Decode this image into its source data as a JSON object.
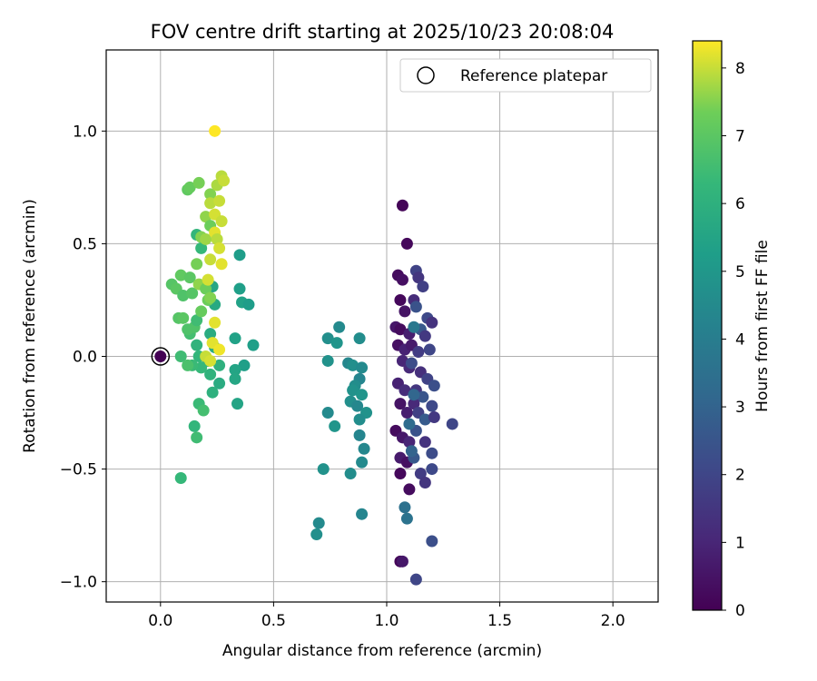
{
  "chart_data": {
    "type": "scatter",
    "title": "FOV centre drift starting at 2025/10/23 20:08:04",
    "xlabel": "Angular distance from reference (arcmin)",
    "ylabel": "Rotation from reference (arcmin)",
    "xlim": [
      -0.24,
      2.2
    ],
    "ylim": [
      -1.09,
      1.36
    ],
    "xticks": [
      0.0,
      0.5,
      1.0,
      1.5,
      2.0
    ],
    "xtick_labels": [
      "0.0",
      "0.5",
      "1.0",
      "1.5",
      "2.0"
    ],
    "yticks": [
      1.0,
      0.5,
      0.0,
      -0.5,
      -1.0
    ],
    "ytick_labels": [
      "1.0",
      "0.5",
      "0.0",
      "−0.5",
      "−1.0"
    ],
    "grid": true,
    "legend": {
      "position": "top-right",
      "entries": [
        "Reference platepar"
      ]
    },
    "reference_point": {
      "x": 0.0,
      "y": 0.0,
      "label": "Reference platepar"
    },
    "colorbar": {
      "label": "Hours from first FF file",
      "range": [
        0,
        8.4
      ],
      "ticks": [
        0,
        1,
        2,
        3,
        4,
        5,
        6,
        7,
        8
      ],
      "tick_labels": [
        "0",
        "1",
        "2",
        "3",
        "4",
        "5",
        "6",
        "7",
        "8"
      ],
      "colormap": "viridis"
    },
    "points": [
      {
        "x": 1.07,
        "y": 0.67,
        "h": 0.1
      },
      {
        "x": 1.09,
        "y": 0.5,
        "h": 0.2
      },
      {
        "x": 1.05,
        "y": 0.36,
        "h": 0.3
      },
      {
        "x": 1.07,
        "y": 0.34,
        "h": 0.4
      },
      {
        "x": 1.06,
        "y": 0.25,
        "h": 0.2
      },
      {
        "x": 1.08,
        "y": 0.2,
        "h": 0.5
      },
      {
        "x": 1.04,
        "y": 0.13,
        "h": 0.6
      },
      {
        "x": 1.06,
        "y": 0.12,
        "h": 0.3
      },
      {
        "x": 1.1,
        "y": 0.1,
        "h": 0.8
      },
      {
        "x": 1.05,
        "y": 0.05,
        "h": 0.4
      },
      {
        "x": 1.08,
        "y": 0.03,
        "h": 0.9
      },
      {
        "x": 1.11,
        "y": 0.05,
        "h": 0.7
      },
      {
        "x": 1.07,
        "y": -0.02,
        "h": 1.0
      },
      {
        "x": 1.1,
        "y": -0.05,
        "h": 1.1
      },
      {
        "x": 1.05,
        "y": -0.12,
        "h": 0.9
      },
      {
        "x": 1.08,
        "y": -0.15,
        "h": 1.2
      },
      {
        "x": 1.06,
        "y": -0.21,
        "h": 0.5
      },
      {
        "x": 1.09,
        "y": -0.25,
        "h": 0.8
      },
      {
        "x": 1.04,
        "y": -0.33,
        "h": 0.3
      },
      {
        "x": 1.07,
        "y": -0.36,
        "h": 0.6
      },
      {
        "x": 1.1,
        "y": -0.38,
        "h": 1.0
      },
      {
        "x": 1.06,
        "y": -0.45,
        "h": 0.7
      },
      {
        "x": 1.09,
        "y": -0.47,
        "h": 0.4
      },
      {
        "x": 1.06,
        "y": -0.52,
        "h": 0.2
      },
      {
        "x": 1.1,
        "y": -0.59,
        "h": 0.3
      },
      {
        "x": 1.06,
        "y": -0.91,
        "h": 0.1
      },
      {
        "x": 1.07,
        "y": -0.91,
        "h": 0.6
      },
      {
        "x": 1.13,
        "y": 0.38,
        "h": 1.9
      },
      {
        "x": 1.14,
        "y": 0.35,
        "h": 1.5
      },
      {
        "x": 1.16,
        "y": 0.31,
        "h": 1.8
      },
      {
        "x": 1.12,
        "y": 0.25,
        "h": 1.2
      },
      {
        "x": 1.13,
        "y": 0.22,
        "h": 2.4
      },
      {
        "x": 1.18,
        "y": 0.17,
        "h": 2.1
      },
      {
        "x": 1.2,
        "y": 0.15,
        "h": 1.4
      },
      {
        "x": 1.15,
        "y": 0.12,
        "h": 2.6
      },
      {
        "x": 1.17,
        "y": 0.09,
        "h": 1.6
      },
      {
        "x": 1.19,
        "y": 0.03,
        "h": 2.0
      },
      {
        "x": 1.14,
        "y": 0.02,
        "h": 1.7
      },
      {
        "x": 1.11,
        "y": -0.03,
        "h": 2.2
      },
      {
        "x": 1.15,
        "y": -0.07,
        "h": 1.3
      },
      {
        "x": 1.18,
        "y": -0.1,
        "h": 1.9
      },
      {
        "x": 1.21,
        "y": -0.13,
        "h": 2.3
      },
      {
        "x": 1.13,
        "y": -0.15,
        "h": 1.5
      },
      {
        "x": 1.16,
        "y": -0.18,
        "h": 2.5
      },
      {
        "x": 1.12,
        "y": -0.21,
        "h": 1.1
      },
      {
        "x": 1.2,
        "y": -0.22,
        "h": 2.1
      },
      {
        "x": 1.14,
        "y": -0.25,
        "h": 1.8
      },
      {
        "x": 1.17,
        "y": -0.28,
        "h": 2.7
      },
      {
        "x": 1.21,
        "y": -0.27,
        "h": 1.6
      },
      {
        "x": 1.29,
        "y": -0.3,
        "h": 2.0
      },
      {
        "x": 1.13,
        "y": -0.33,
        "h": 2.4
      },
      {
        "x": 1.17,
        "y": -0.38,
        "h": 1.4
      },
      {
        "x": 1.2,
        "y": -0.43,
        "h": 2.2
      },
      {
        "x": 1.12,
        "y": -0.45,
        "h": 2.6
      },
      {
        "x": 1.15,
        "y": -0.52,
        "h": 1.7
      },
      {
        "x": 1.2,
        "y": -0.5,
        "h": 2.1
      },
      {
        "x": 1.17,
        "y": -0.56,
        "h": 1.5
      },
      {
        "x": 1.2,
        "y": -0.82,
        "h": 2.3
      },
      {
        "x": 1.13,
        "y": -0.99,
        "h": 2.0
      },
      {
        "x": 1.11,
        "y": -0.42,
        "h": 3.0
      },
      {
        "x": 1.1,
        "y": -0.3,
        "h": 3.3
      },
      {
        "x": 1.12,
        "y": -0.17,
        "h": 3.1
      },
      {
        "x": 1.08,
        "y": -0.67,
        "h": 3.5
      },
      {
        "x": 1.09,
        "y": -0.72,
        "h": 3.6
      },
      {
        "x": 1.12,
        "y": 0.13,
        "h": 3.8
      },
      {
        "x": 0.79,
        "y": 0.13,
        "h": 4.5
      },
      {
        "x": 0.74,
        "y": 0.08,
        "h": 4.7
      },
      {
        "x": 0.78,
        "y": 0.06,
        "h": 4.9
      },
      {
        "x": 0.88,
        "y": 0.08,
        "h": 4.6
      },
      {
        "x": 0.74,
        "y": -0.02,
        "h": 4.8
      },
      {
        "x": 0.83,
        "y": -0.03,
        "h": 4.4
      },
      {
        "x": 0.85,
        "y": -0.04,
        "h": 4.7
      },
      {
        "x": 0.89,
        "y": -0.05,
        "h": 4.5
      },
      {
        "x": 0.88,
        "y": -0.1,
        "h": 4.3
      },
      {
        "x": 0.86,
        "y": -0.13,
        "h": 4.6
      },
      {
        "x": 0.85,
        "y": -0.15,
        "h": 4.8
      },
      {
        "x": 0.89,
        "y": -0.17,
        "h": 4.9
      },
      {
        "x": 0.84,
        "y": -0.2,
        "h": 4.7
      },
      {
        "x": 0.87,
        "y": -0.22,
        "h": 4.4
      },
      {
        "x": 0.74,
        "y": -0.25,
        "h": 4.5
      },
      {
        "x": 0.91,
        "y": -0.25,
        "h": 4.8
      },
      {
        "x": 0.88,
        "y": -0.28,
        "h": 4.6
      },
      {
        "x": 0.77,
        "y": -0.31,
        "h": 4.9
      },
      {
        "x": 0.88,
        "y": -0.35,
        "h": 4.3
      },
      {
        "x": 0.9,
        "y": -0.41,
        "h": 4.4
      },
      {
        "x": 0.89,
        "y": -0.47,
        "h": 4.5
      },
      {
        "x": 0.72,
        "y": -0.5,
        "h": 4.8
      },
      {
        "x": 0.84,
        "y": -0.52,
        "h": 4.6
      },
      {
        "x": 0.89,
        "y": -0.7,
        "h": 4.3
      },
      {
        "x": 0.7,
        "y": -0.74,
        "h": 4.5
      },
      {
        "x": 0.69,
        "y": -0.79,
        "h": 4.7
      },
      {
        "x": 0.35,
        "y": 0.45,
        "h": 5.2
      },
      {
        "x": 0.35,
        "y": 0.3,
        "h": 5.3
      },
      {
        "x": 0.36,
        "y": 0.24,
        "h": 5.4
      },
      {
        "x": 0.39,
        "y": 0.23,
        "h": 5.2
      },
      {
        "x": 0.41,
        "y": 0.05,
        "h": 5.3
      },
      {
        "x": 0.33,
        "y": 0.08,
        "h": 5.4
      },
      {
        "x": 0.37,
        "y": -0.04,
        "h": 5.3
      },
      {
        "x": 0.33,
        "y": -0.06,
        "h": 5.5
      },
      {
        "x": 0.33,
        "y": -0.1,
        "h": 5.6
      },
      {
        "x": 0.34,
        "y": -0.21,
        "h": 5.5
      },
      {
        "x": 0.23,
        "y": 0.31,
        "h": 5.6
      },
      {
        "x": 0.24,
        "y": 0.23,
        "h": 5.7
      },
      {
        "x": 0.22,
        "y": 0.1,
        "h": 5.8
      },
      {
        "x": 0.24,
        "y": 0.04,
        "h": 5.9
      },
      {
        "x": 0.21,
        "y": -0.02,
        "h": 5.7
      },
      {
        "x": 0.26,
        "y": -0.04,
        "h": 6.0
      },
      {
        "x": 0.22,
        "y": -0.08,
        "h": 6.1
      },
      {
        "x": 0.26,
        "y": -0.12,
        "h": 5.8
      },
      {
        "x": 0.23,
        "y": -0.16,
        "h": 6.0
      },
      {
        "x": 0.16,
        "y": 0.54,
        "h": 6.2
      },
      {
        "x": 0.18,
        "y": 0.48,
        "h": 6.3
      },
      {
        "x": 0.16,
        "y": 0.05,
        "h": 6.1
      },
      {
        "x": 0.17,
        "y": 0.0,
        "h": 6.2
      },
      {
        "x": 0.18,
        "y": -0.05,
        "h": 6.3
      },
      {
        "x": 0.14,
        "y": -0.04,
        "h": 6.4
      },
      {
        "x": 0.17,
        "y": -0.21,
        "h": 6.4
      },
      {
        "x": 0.19,
        "y": -0.24,
        "h": 6.6
      },
      {
        "x": 0.15,
        "y": -0.31,
        "h": 6.2
      },
      {
        "x": 0.16,
        "y": -0.36,
        "h": 6.5
      },
      {
        "x": 0.09,
        "y": -0.54,
        "h": 6.3
      },
      {
        "x": 0.09,
        "y": 0.0,
        "h": 6.5
      },
      {
        "x": 0.12,
        "y": -0.04,
        "h": 6.7
      },
      {
        "x": 0.13,
        "y": 0.1,
        "h": 6.6
      },
      {
        "x": 0.15,
        "y": 0.13,
        "h": 6.8
      },
      {
        "x": 0.16,
        "y": 0.16,
        "h": 6.5
      },
      {
        "x": 0.08,
        "y": 0.17,
        "h": 6.9
      },
      {
        "x": 0.1,
        "y": 0.17,
        "h": 7.0
      },
      {
        "x": 0.12,
        "y": 0.12,
        "h": 6.8
      },
      {
        "x": 0.05,
        "y": 0.32,
        "h": 6.9
      },
      {
        "x": 0.07,
        "y": 0.3,
        "h": 7.0
      },
      {
        "x": 0.1,
        "y": 0.27,
        "h": 6.8
      },
      {
        "x": 0.09,
        "y": 0.36,
        "h": 7.1
      },
      {
        "x": 0.13,
        "y": 0.35,
        "h": 7.0
      },
      {
        "x": 0.14,
        "y": 0.28,
        "h": 6.9
      },
      {
        "x": 0.18,
        "y": 0.2,
        "h": 7.2
      },
      {
        "x": 0.21,
        "y": 0.25,
        "h": 7.3
      },
      {
        "x": 0.12,
        "y": 0.74,
        "h": 7.1
      },
      {
        "x": 0.13,
        "y": 0.75,
        "h": 7.2
      },
      {
        "x": 0.17,
        "y": 0.77,
        "h": 7.4
      },
      {
        "x": 0.22,
        "y": 0.72,
        "h": 7.5
      },
      {
        "x": 0.2,
        "y": 0.62,
        "h": 7.6
      },
      {
        "x": 0.22,
        "y": 0.58,
        "h": 7.3
      },
      {
        "x": 0.18,
        "y": 0.53,
        "h": 7.5
      },
      {
        "x": 0.2,
        "y": 0.52,
        "h": 7.7
      },
      {
        "x": 0.16,
        "y": 0.41,
        "h": 7.4
      },
      {
        "x": 0.17,
        "y": 0.32,
        "h": 7.6
      },
      {
        "x": 0.2,
        "y": 0.3,
        "h": 7.3
      },
      {
        "x": 0.22,
        "y": 0.26,
        "h": 7.5
      },
      {
        "x": 0.25,
        "y": 0.76,
        "h": 7.8
      },
      {
        "x": 0.27,
        "y": 0.8,
        "h": 7.9
      },
      {
        "x": 0.28,
        "y": 0.78,
        "h": 8.0
      },
      {
        "x": 0.22,
        "y": 0.68,
        "h": 7.9
      },
      {
        "x": 0.26,
        "y": 0.69,
        "h": 8.0
      },
      {
        "x": 0.24,
        "y": 0.63,
        "h": 8.1
      },
      {
        "x": 0.27,
        "y": 0.6,
        "h": 8.0
      },
      {
        "x": 0.24,
        "y": 0.55,
        "h": 8.2
      },
      {
        "x": 0.25,
        "y": 0.52,
        "h": 7.9
      },
      {
        "x": 0.26,
        "y": 0.48,
        "h": 8.1
      },
      {
        "x": 0.22,
        "y": 0.43,
        "h": 8.0
      },
      {
        "x": 0.27,
        "y": 0.41,
        "h": 8.2
      },
      {
        "x": 0.21,
        "y": 0.34,
        "h": 8.1
      },
      {
        "x": 0.24,
        "y": 0.15,
        "h": 8.2
      },
      {
        "x": 0.2,
        "y": 0.0,
        "h": 8.0
      },
      {
        "x": 0.22,
        "y": -0.02,
        "h": 8.1
      },
      {
        "x": 0.23,
        "y": 0.06,
        "h": 8.2
      },
      {
        "x": 0.26,
        "y": 0.03,
        "h": 8.3
      },
      {
        "x": 0.24,
        "y": 1.0,
        "h": 8.4
      }
    ]
  }
}
